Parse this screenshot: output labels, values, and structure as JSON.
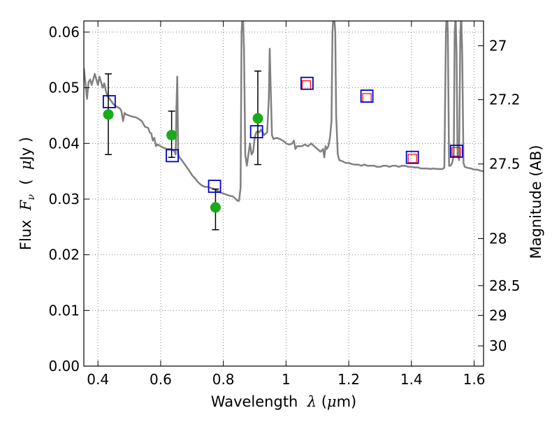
{
  "chart_data": {
    "type": "scatter",
    "title": "",
    "xlabel_parts": [
      "Wavelength  ",
      "λ",
      " (",
      "μ",
      "m)"
    ],
    "ylabel_parts": [
      "Flux  ",
      "F",
      "ν",
      "  (  ",
      "μ",
      "Jy )"
    ],
    "y2label": "Magnitude (AB)",
    "xlim": [
      0.355,
      1.63
    ],
    "ylim": [
      0.0,
      0.062
    ],
    "grid": true,
    "x_ticks": [
      0.4,
      0.6,
      0.8,
      1.0,
      1.2,
      1.4,
      1.6
    ],
    "x_tick_labels": [
      "0.4",
      "0.6",
      "0.8",
      "1",
      "1.2",
      "1.4",
      "1.6"
    ],
    "y_ticks": [
      0.0,
      0.01,
      0.02,
      0.03,
      0.04,
      0.05,
      0.06
    ],
    "y_tick_labels": [
      "0.00",
      "0.01",
      "0.02",
      "0.03",
      "0.04",
      "0.05",
      "0.06"
    ],
    "y2_ticks_mag": [
      27,
      27.2,
      27.5,
      28,
      28.5,
      29,
      30
    ],
    "y2_tick_labels": [
      "27",
      "27.2",
      "27.5",
      "28",
      "28.5",
      "29",
      "30"
    ],
    "series": [
      {
        "kind": "line",
        "color": "#808080",
        "points": [
          [
            0.355,
            0.0535
          ],
          [
            0.36,
            0.051
          ],
          [
            0.365,
            0.048
          ],
          [
            0.37,
            0.051
          ],
          [
            0.375,
            0.0515
          ],
          [
            0.38,
            0.0505
          ],
          [
            0.385,
            0.0515
          ],
          [
            0.39,
            0.0525
          ],
          [
            0.395,
            0.0515
          ],
          [
            0.4,
            0.0505
          ],
          [
            0.405,
            0.052
          ],
          [
            0.41,
            0.051
          ],
          [
            0.415,
            0.05
          ],
          [
            0.42,
            0.0508
          ],
          [
            0.425,
            0.0495
          ],
          [
            0.43,
            0.0485
          ],
          [
            0.435,
            0.0482
          ],
          [
            0.44,
            0.0478
          ],
          [
            0.45,
            0.047
          ],
          [
            0.46,
            0.0466
          ],
          [
            0.47,
            0.0463
          ],
          [
            0.475,
            0.0458
          ],
          [
            0.48,
            0.044
          ],
          [
            0.485,
            0.0455
          ],
          [
            0.49,
            0.0452
          ],
          [
            0.5,
            0.045
          ],
          [
            0.51,
            0.0448
          ],
          [
            0.52,
            0.0447
          ],
          [
            0.53,
            0.0444
          ],
          [
            0.54,
            0.044
          ],
          [
            0.55,
            0.043
          ],
          [
            0.56,
            0.0428
          ],
          [
            0.565,
            0.042
          ],
          [
            0.57,
            0.0418
          ],
          [
            0.575,
            0.0405
          ],
          [
            0.58,
            0.041
          ],
          [
            0.585,
            0.0395
          ],
          [
            0.59,
            0.0398
          ],
          [
            0.6,
            0.0395
          ],
          [
            0.61,
            0.0392
          ],
          [
            0.62,
            0.039
          ],
          [
            0.63,
            0.039
          ],
          [
            0.64,
            0.0388
          ],
          [
            0.645,
            0.0385
          ],
          [
            0.648,
            0.038
          ],
          [
            0.65,
            0.0455
          ],
          [
            0.653,
            0.052
          ],
          [
            0.656,
            0.038
          ],
          [
            0.66,
            0.0375
          ],
          [
            0.67,
            0.0368
          ],
          [
            0.68,
            0.036
          ],
          [
            0.69,
            0.0352
          ],
          [
            0.7,
            0.0343
          ],
          [
            0.71,
            0.0337
          ],
          [
            0.72,
            0.033
          ],
          [
            0.73,
            0.0325
          ],
          [
            0.74,
            0.0322
          ],
          [
            0.75,
            0.0322
          ],
          [
            0.76,
            0.032
          ],
          [
            0.77,
            0.0318
          ],
          [
            0.78,
            0.0315
          ],
          [
            0.79,
            0.0312
          ],
          [
            0.8,
            0.031
          ],
          [
            0.81,
            0.0308
          ],
          [
            0.82,
            0.0306
          ],
          [
            0.83,
            0.0305
          ],
          [
            0.84,
            0.03
          ],
          [
            0.845,
            0.0297
          ],
          [
            0.85,
            0.0297
          ],
          [
            0.855,
            0.032
          ],
          [
            0.858,
            0.06
          ],
          [
            0.862,
            0.064
          ],
          [
            0.866,
            0.057
          ],
          [
            0.87,
            0.038
          ],
          [
            0.875,
            0.036
          ],
          [
            0.88,
            0.038
          ],
          [
            0.885,
            0.04
          ],
          [
            0.89,
            0.038
          ],
          [
            0.895,
            0.0385
          ],
          [
            0.9,
            0.041
          ],
          [
            0.905,
            0.042
          ],
          [
            0.91,
            0.0422
          ],
          [
            0.915,
            0.042
          ],
          [
            0.92,
            0.0425
          ],
          [
            0.93,
            0.0415
          ],
          [
            0.94,
            0.042
          ],
          [
            0.945,
            0.048
          ],
          [
            0.948,
            0.057
          ],
          [
            0.951,
            0.05
          ],
          [
            0.955,
            0.0415
          ],
          [
            0.96,
            0.0408
          ],
          [
            0.97,
            0.041
          ],
          [
            0.98,
            0.0408
          ],
          [
            0.99,
            0.0405
          ],
          [
            1.0,
            0.04
          ],
          [
            1.01,
            0.0398
          ],
          [
            1.02,
            0.04
          ],
          [
            1.025,
            0.0405
          ],
          [
            1.03,
            0.039
          ],
          [
            1.035,
            0.0395
          ],
          [
            1.04,
            0.0395
          ],
          [
            1.05,
            0.0395
          ],
          [
            1.06,
            0.0398
          ],
          [
            1.07,
            0.0395
          ],
          [
            1.08,
            0.04
          ],
          [
            1.09,
            0.0395
          ],
          [
            1.1,
            0.039
          ],
          [
            1.11,
            0.0385
          ],
          [
            1.118,
            0.039
          ],
          [
            1.122,
            0.0375
          ],
          [
            1.126,
            0.0395
          ],
          [
            1.13,
            0.039
          ],
          [
            1.135,
            0.0395
          ],
          [
            1.14,
            0.041
          ],
          [
            1.145,
            0.044
          ],
          [
            1.148,
            0.06
          ],
          [
            1.152,
            0.064
          ],
          [
            1.157,
            0.06
          ],
          [
            1.16,
            0.045
          ],
          [
            1.165,
            0.038
          ],
          [
            1.17,
            0.037
          ],
          [
            1.18,
            0.0368
          ],
          [
            1.19,
            0.0365
          ],
          [
            1.2,
            0.0365
          ],
          [
            1.21,
            0.0363
          ],
          [
            1.22,
            0.0362
          ],
          [
            1.23,
            0.0362
          ],
          [
            1.24,
            0.036
          ],
          [
            1.25,
            0.0362
          ],
          [
            1.26,
            0.036
          ],
          [
            1.27,
            0.036
          ],
          [
            1.28,
            0.036
          ],
          [
            1.29,
            0.0358
          ],
          [
            1.3,
            0.0358
          ],
          [
            1.31,
            0.036
          ],
          [
            1.32,
            0.036
          ],
          [
            1.33,
            0.0358
          ],
          [
            1.34,
            0.036
          ],
          [
            1.35,
            0.036
          ],
          [
            1.36,
            0.0358
          ],
          [
            1.37,
            0.036
          ],
          [
            1.38,
            0.036
          ],
          [
            1.39,
            0.0358
          ],
          [
            1.4,
            0.0358
          ],
          [
            1.41,
            0.0357
          ],
          [
            1.42,
            0.0357
          ],
          [
            1.43,
            0.0355
          ],
          [
            1.44,
            0.0355
          ],
          [
            1.45,
            0.0355
          ],
          [
            1.46,
            0.0354
          ],
          [
            1.47,
            0.0355
          ],
          [
            1.48,
            0.0354
          ],
          [
            1.49,
            0.0354
          ],
          [
            1.5,
            0.0354
          ],
          [
            1.505,
            0.0357
          ],
          [
            1.51,
            0.06
          ],
          [
            1.513,
            0.064
          ],
          [
            1.516,
            0.06
          ],
          [
            1.52,
            0.036
          ],
          [
            1.525,
            0.036
          ],
          [
            1.53,
            0.0365
          ],
          [
            1.535,
            0.038
          ],
          [
            1.538,
            0.06
          ],
          [
            1.541,
            0.063
          ],
          [
            1.544,
            0.056
          ],
          [
            1.547,
            0.038
          ],
          [
            1.552,
            0.037
          ],
          [
            1.556,
            0.06
          ],
          [
            1.559,
            0.063
          ],
          [
            1.562,
            0.056
          ],
          [
            1.566,
            0.0365
          ],
          [
            1.57,
            0.0358
          ],
          [
            1.58,
            0.0356
          ],
          [
            1.59,
            0.0355
          ],
          [
            1.6,
            0.0353
          ],
          [
            1.61,
            0.0353
          ],
          [
            1.62,
            0.0351
          ],
          [
            1.63,
            0.035
          ]
        ]
      },
      {
        "kind": "errorbar",
        "color": "#000000",
        "points": [
          {
            "x": 0.433,
            "y": 0.0452,
            "lo": 0.038,
            "hi": 0.0525
          },
          {
            "x": 0.635,
            "y": 0.0415,
            "lo": 0.0375,
            "hi": 0.0458
          },
          {
            "x": 0.775,
            "y": 0.0285,
            "lo": 0.0245,
            "hi": 0.0318
          },
          {
            "x": 0.91,
            "y": 0.0445,
            "lo": 0.0362,
            "hi": 0.053
          }
        ]
      },
      {
        "kind": "filled-circle",
        "color": "#1aaa1a",
        "points": [
          [
            0.433,
            0.0452
          ],
          [
            0.635,
            0.0415
          ],
          [
            0.775,
            0.0285
          ],
          [
            0.91,
            0.0445
          ]
        ]
      },
      {
        "kind": "open-square",
        "color": "#ff0000",
        "points": [
          [
            1.065,
            0.0505
          ],
          [
            1.258,
            0.0482
          ],
          [
            1.403,
            0.0373
          ],
          [
            1.543,
            0.0385
          ]
        ]
      },
      {
        "kind": "open-square",
        "color": "#0000cc",
        "points": [
          [
            0.436,
            0.0475
          ],
          [
            0.637,
            0.0378
          ],
          [
            0.772,
            0.0323
          ],
          [
            0.906,
            0.0421
          ],
          [
            1.067,
            0.0508
          ],
          [
            1.258,
            0.0485
          ],
          [
            1.403,
            0.0375
          ],
          [
            1.544,
            0.0386
          ]
        ]
      }
    ]
  }
}
